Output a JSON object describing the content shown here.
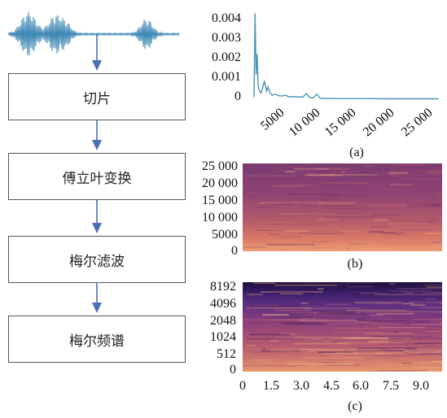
{
  "flow": {
    "steps": [
      "切片",
      "傅立叶变换",
      "梅尔滤波",
      "梅尔频谱"
    ]
  },
  "colors": {
    "waveform": "#3a86b4",
    "arrow": "#4a6fb5",
    "spectrum_line": "#4a94b8"
  },
  "chart_data": [
    {
      "type": "line",
      "caption": "(a)",
      "yticks": [
        "0.004",
        "0.003",
        "0.002",
        "0.001",
        "0"
      ],
      "xticks": [
        "5000",
        "10 000",
        "15 000",
        "20 000",
        "25 000"
      ],
      "ylim": [
        0,
        0.0043
      ],
      "xlim": [
        0,
        27000
      ],
      "series": [
        {
          "x": [
            0,
            150,
            300,
            450,
            600,
            800,
            1000,
            1200,
            1500,
            1800,
            2000,
            2300,
            2600,
            3000,
            3500,
            4000,
            4500,
            5000,
            6000,
            7000,
            7500,
            8000,
            8500,
            9000,
            9500,
            10000,
            12000,
            15000,
            20000,
            25000,
            26500
          ],
          "y": [
            0.0001,
            0.0042,
            0.0012,
            0.0022,
            0.0006,
            0.0004,
            0.0003,
            0.0005,
            0.0009,
            0.0004,
            0.0006,
            0.0003,
            0.0002,
            0.00025,
            0.00018,
            0.00015,
            0.0002,
            0.00012,
            0.00012,
            0.0001,
            0.00028,
            8e-05,
            6e-05,
            0.00025,
            5e-05,
            4e-05,
            3e-05,
            3e-05,
            2e-05,
            2e-05,
            2e-05
          ]
        }
      ]
    },
    {
      "type": "heatmap",
      "caption": "(b)",
      "yticks": [
        "25 000",
        "20 000",
        "15 000",
        "10 000",
        "5000",
        "0"
      ]
    },
    {
      "type": "heatmap",
      "caption": "(c)",
      "yticks": [
        "8192",
        "4096",
        "2048",
        "1024",
        "512",
        "0"
      ],
      "xticks": [
        "0",
        "1.5",
        "3.0",
        "4.5",
        "6.0",
        "7.5",
        "9.0"
      ]
    }
  ]
}
